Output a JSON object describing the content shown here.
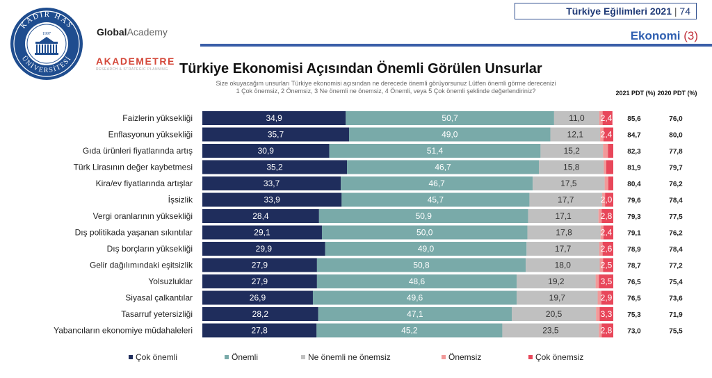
{
  "header": {
    "report_title": "Türkiye Eğilimleri 2021",
    "separator": "|",
    "page_number": "74",
    "section": "Ekonomi",
    "section_number": "(3)"
  },
  "logos": {
    "university_seal_text": "KADIR HAS ÜNİVERSİTESİ",
    "seal_year": "1997",
    "global_academy_1": "Global",
    "global_academy_2": "Academy",
    "akademetre": "AKADEMETRE",
    "akademetre_tagline": "RESEARCH & STRATEGIC PLANNING"
  },
  "colors": {
    "cok_onemli": "#1f2d5c",
    "onemli": "#79aaa9",
    "ne_onemli_ne_onemsiz": "#c0c0c0",
    "onemsiz": "#f19999",
    "cok_onemsiz": "#e8475a"
  },
  "chart_data": {
    "type": "bar",
    "orientation": "horizontal",
    "stacked": true,
    "title": "Türkiye Ekonomisi Açısından Önemli Görülen Unsurlar",
    "subtitle_line1": "Size okuyacağım unsurları Türkiye ekonomisi açısından ne derecede önemli görüyorsunuz Lütfen önemli görme derecenizi",
    "subtitle_line2": "1 Çok önemsiz, 2 Önemsiz, 3 Ne önemli ne önemsiz, 4 Önemli, veya 5 Çok önemli şeklinde değerlendiriniz?",
    "categories": [
      "Faizlerin yüksekliği",
      "Enflasyonun yüksekliği",
      "Gıda ürünleri fiyatlarında artış",
      "Türk Lirasının değer kaybetmesi",
      "Kira/ev fiyatlarında artışlar",
      "İşsizlik",
      "Vergi oranlarının yüksekliği",
      "Dış politikada yaşanan sıkıntılar",
      "Dış borçların yüksekliği",
      "Gelir dağılımındaki eşitsizlik",
      "Yolsuzluklar",
      "Siyasal çalkantılar",
      "Tasarruf yetersizliği",
      "Yabancıların ekonomiye müdahaleleri"
    ],
    "series": [
      {
        "name": "Çok önemli",
        "values": [
          34.9,
          35.7,
          30.9,
          35.2,
          33.7,
          33.9,
          28.4,
          29.1,
          29.9,
          27.9,
          27.9,
          26.9,
          28.2,
          27.8
        ]
      },
      {
        "name": "Önemli",
        "values": [
          50.7,
          49.0,
          51.4,
          46.7,
          46.7,
          45.7,
          50.9,
          50.0,
          49.0,
          50.8,
          48.6,
          49.6,
          47.1,
          45.2
        ]
      },
      {
        "name": "Ne önemli ne önemsiz",
        "values": [
          11.0,
          12.1,
          15.2,
          15.8,
          17.5,
          17.7,
          17.1,
          17.8,
          17.7,
          18.0,
          19.2,
          19.7,
          20.5,
          23.5
        ]
      },
      {
        "name": "Önemsiz",
        "values": [
          0.8,
          0.8,
          1.2,
          0.6,
          0.9,
          0.7,
          0.8,
          0.7,
          0.8,
          0.8,
          0.8,
          0.9,
          0.9,
          0.7
        ]
      },
      {
        "name": "Çok önemsiz",
        "values": [
          2.4,
          2.4,
          1.3,
          1.7,
          1.2,
          2.0,
          2.8,
          2.4,
          2.6,
          2.5,
          3.5,
          2.9,
          3.3,
          2.8
        ]
      }
    ],
    "value_labels_shown_for": [
      "Çok önemli",
      "Önemli",
      "Ne önemli ne önemsiz",
      "Çok önemsiz"
    ],
    "cok_onemsiz_labels": [
      "2,4",
      "2,4",
      "",
      "",
      "",
      "2,0",
      "2,8",
      "2,4",
      "2,6",
      "2,5",
      "3,5",
      "2,9",
      "3,3",
      "2,8"
    ],
    "xlim": [
      0,
      100
    ],
    "legend_position": "bottom",
    "pdt_columns": {
      "header_2021": "2021 PDT (%)",
      "header_2020": "2020 PDT (%)",
      "values_2021": [
        "85,6",
        "84,7",
        "82,3",
        "81,9",
        "80,4",
        "79,6",
        "79,3",
        "79,1",
        "78,9",
        "78,7",
        "76,5",
        "76,5",
        "75,3",
        "73,0"
      ],
      "values_2020": [
        "76,0",
        "80,0",
        "77,8",
        "79,7",
        "76,2",
        "78,4",
        "77,5",
        "76,2",
        "78,4",
        "77,2",
        "75,4",
        "73,6",
        "71,9",
        "75,5"
      ]
    }
  }
}
